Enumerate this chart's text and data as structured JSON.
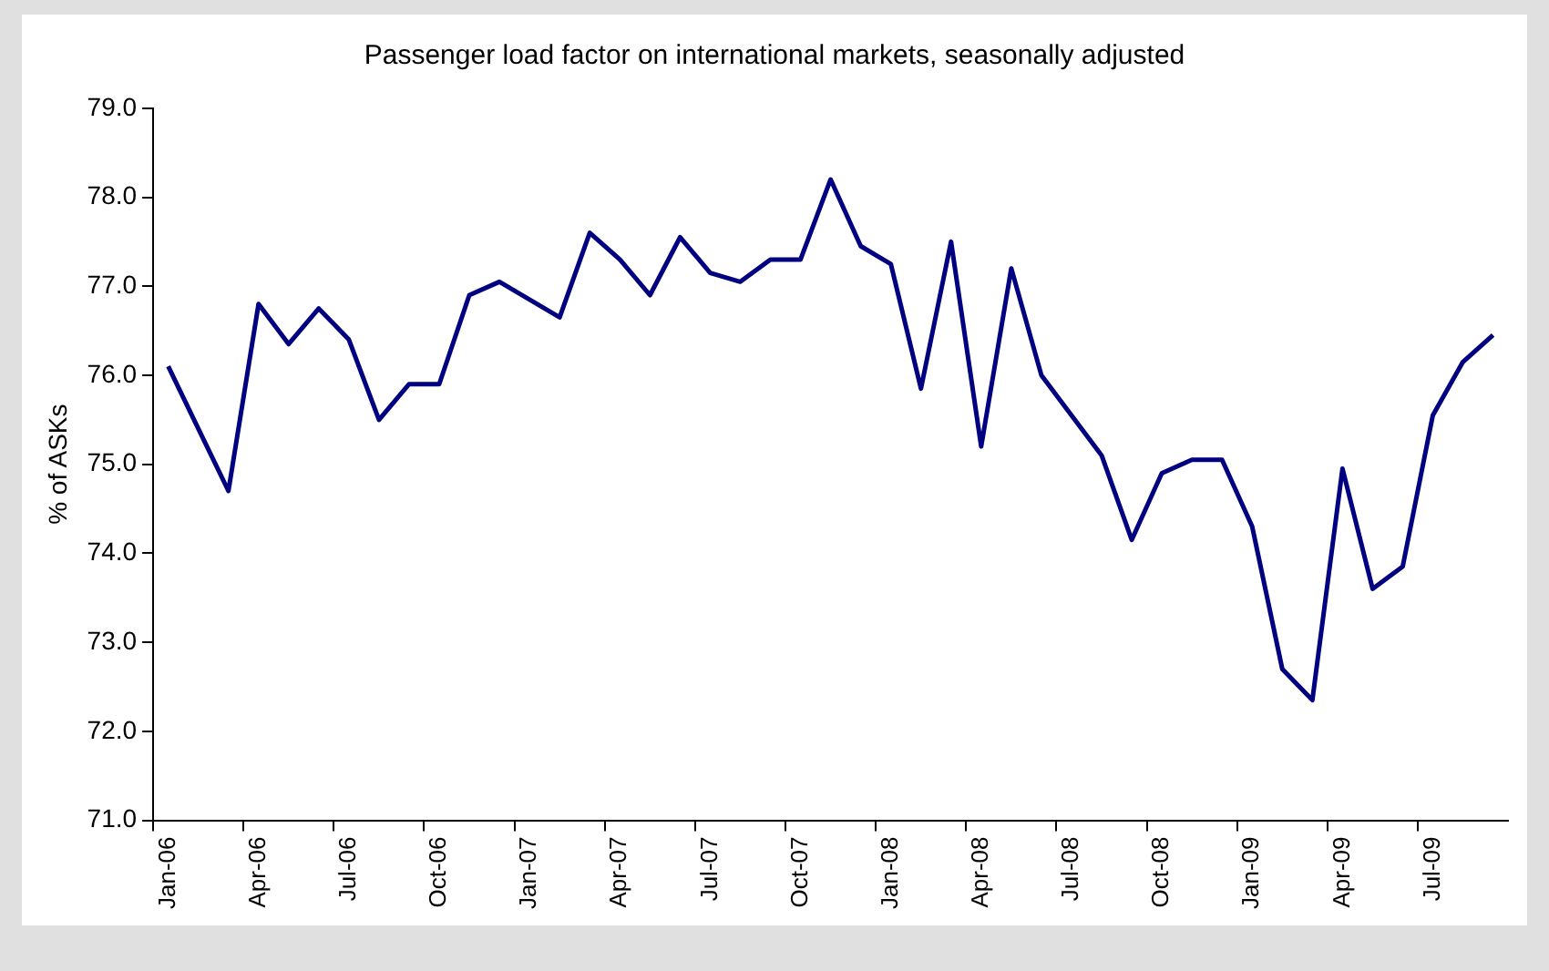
{
  "chart_data": {
    "type": "line",
    "title": "Passenger load factor on international markets, seasonally adjusted",
    "ylabel": "% of ASKs",
    "categories": [
      "Jan-06",
      null,
      null,
      "Apr-06",
      null,
      null,
      "Jul-06",
      null,
      null,
      "Oct-06",
      null,
      null,
      "Jan-07",
      null,
      null,
      "Apr-07",
      null,
      null,
      "Jul-07",
      null,
      null,
      "Oct-07",
      null,
      null,
      "Jan-08",
      null,
      null,
      "Apr-08",
      null,
      null,
      "Jul-08",
      null,
      null,
      "Oct-08",
      null,
      null,
      "Jan-09",
      null,
      null,
      "Apr-09",
      null,
      null,
      "Jul-09",
      null,
      null
    ],
    "series": [
      {
        "color": "#000080",
        "values": [
          76.1,
          75.4,
          74.7,
          76.8,
          76.35,
          76.75,
          76.4,
          75.5,
          75.9,
          75.9,
          76.9,
          77.05,
          76.85,
          76.65,
          77.6,
          77.3,
          76.9,
          77.55,
          77.15,
          77.05,
          77.3,
          77.3,
          78.2,
          77.45,
          77.25,
          75.85,
          77.5,
          75.2,
          77.2,
          76.0,
          75.55,
          75.1,
          74.15,
          74.9,
          75.05,
          75.05,
          74.3,
          72.7,
          72.35,
          74.95,
          73.6,
          73.85,
          75.55,
          76.15,
          76.45
        ]
      }
    ],
    "ylim": [
      71,
      79
    ],
    "yticks": [
      {
        "value": 71,
        "label": "71.0"
      },
      {
        "value": 72,
        "label": "72.0"
      },
      {
        "value": 73,
        "label": "73.0"
      },
      {
        "value": 74,
        "label": "74.0"
      },
      {
        "value": 75,
        "label": "75.0"
      },
      {
        "value": 76,
        "label": "76.0"
      },
      {
        "value": 77,
        "label": "77.0"
      },
      {
        "value": 78,
        "label": "78.0"
      },
      {
        "value": 79,
        "label": "79.0"
      }
    ],
    "grid": false,
    "legend": false,
    "marker": "none",
    "line_style": "solid"
  }
}
